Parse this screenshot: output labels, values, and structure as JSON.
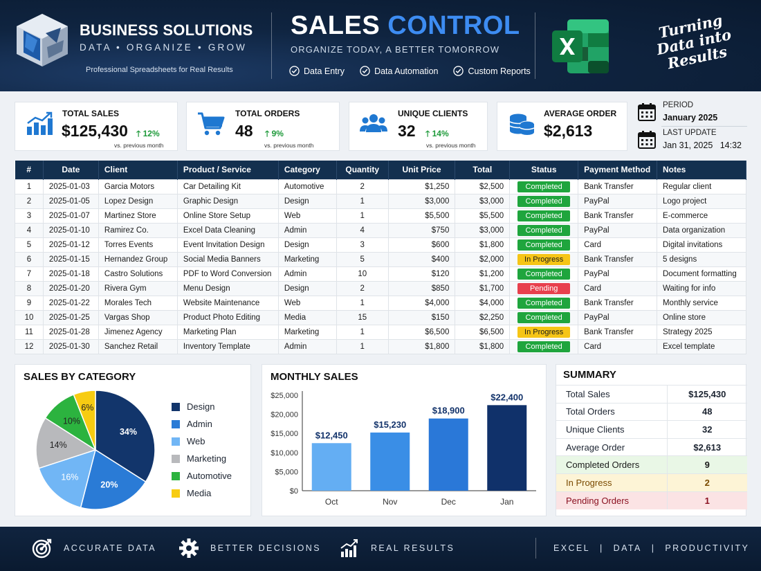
{
  "header": {
    "brand_title": "BUSINESS SOLUTIONS",
    "brand_tagline": "DATA • ORGANIZE • GROW",
    "brand_sub": "Professional Spreadsheets for Real Results",
    "title_part1": "SALES",
    "title_part2": "CONTROL",
    "subtitle": "ORGANIZE TODAY, A BETTER TOMORROW",
    "features": [
      "Data Entry",
      "Data Automation",
      "Custom Reports"
    ],
    "slogan": [
      "Turning",
      "Data into",
      "Results"
    ]
  },
  "kpis": [
    {
      "label": "TOTAL SALES",
      "value": "$125,430",
      "delta": "12%",
      "note": "vs. previous month",
      "icon": "bar-chart-icon"
    },
    {
      "label": "TOTAL ORDERS",
      "value": "48",
      "delta": "9%",
      "note": "vs. previous month",
      "icon": "shopping-cart-icon"
    },
    {
      "label": "UNIQUE CLIENTS",
      "value": "32",
      "delta": "14%",
      "note": "vs. previous month",
      "icon": "users-icon"
    },
    {
      "label": "AVERAGE ORDER",
      "value": "$2,613",
      "icon": "coins-icon"
    }
  ],
  "period": {
    "period_label": "PERIOD",
    "period_value": "January 2025",
    "update_label": "LAST UPDATE",
    "update_value": "Jan 31, 2025   14:32"
  },
  "table": {
    "headers": [
      "#",
      "Date",
      "Client",
      "Product / Service",
      "Category",
      "Quantity",
      "Unit Price",
      "Total",
      "Status",
      "Payment Method",
      "Notes"
    ],
    "rows": [
      [
        "1",
        "2025-01-03",
        "Garcia Motors",
        "Car Detailing Kit",
        "Automotive",
        "2",
        "$1,250",
        "$2,500",
        "Completed",
        "Bank Transfer",
        "Regular client"
      ],
      [
        "2",
        "2025-01-05",
        "Lopez Design",
        "Graphic Design",
        "Design",
        "1",
        "$3,000",
        "$3,000",
        "Completed",
        "PayPal",
        "Logo project"
      ],
      [
        "3",
        "2025-01-07",
        "Martinez Store",
        "Online Store Setup",
        "Web",
        "1",
        "$5,500",
        "$5,500",
        "Completed",
        "Bank Transfer",
        "E-commerce"
      ],
      [
        "4",
        "2025-01-10",
        "Ramirez Co.",
        "Excel Data Cleaning",
        "Admin",
        "4",
        "$750",
        "$3,000",
        "Completed",
        "PayPal",
        "Data organization"
      ],
      [
        "5",
        "2025-01-12",
        "Torres Events",
        "Event Invitation Design",
        "Design",
        "3",
        "$600",
        "$1,800",
        "Completed",
        "Card",
        "Digital invitations"
      ],
      [
        "6",
        "2025-01-15",
        "Hernandez Group",
        "Social Media Banners",
        "Marketing",
        "5",
        "$400",
        "$2,000",
        "In Progress",
        "Bank Transfer",
        "5 designs"
      ],
      [
        "7",
        "2025-01-18",
        "Castro Solutions",
        "PDF to Word Conversion",
        "Admin",
        "10",
        "$120",
        "$1,200",
        "Completed",
        "PayPal",
        "Document formatting"
      ],
      [
        "8",
        "2025-01-20",
        "Rivera Gym",
        "Menu Design",
        "Design",
        "2",
        "$850",
        "$1,700",
        "Pending",
        "Card",
        "Waiting for info"
      ],
      [
        "9",
        "2025-01-22",
        "Morales Tech",
        "Website Maintenance",
        "Web",
        "1",
        "$4,000",
        "$4,000",
        "Completed",
        "Bank Transfer",
        "Monthly service"
      ],
      [
        "10",
        "2025-01-25",
        "Vargas Shop",
        "Product Photo Editing",
        "Media",
        "15",
        "$150",
        "$2,250",
        "Completed",
        "PayPal",
        "Online store"
      ],
      [
        "11",
        "2025-01-28",
        "Jimenez Agency",
        "Marketing Plan",
        "Marketing",
        "1",
        "$6,500",
        "$6,500",
        "In Progress",
        "Bank Transfer",
        "Strategy 2025"
      ],
      [
        "12",
        "2025-01-30",
        "Sanchez Retail",
        "Inventory Template",
        "Admin",
        "1",
        "$1,800",
        "$1,800",
        "Completed",
        "Card",
        "Excel template"
      ]
    ]
  },
  "chart_data": [
    {
      "type": "pie",
      "title": "SALES BY CATEGORY",
      "categories": [
        "Design",
        "Admin",
        "Web",
        "Marketing",
        "Automotive",
        "Media"
      ],
      "values": [
        34,
        20,
        16,
        14,
        10,
        6
      ],
      "labels": [
        "34%",
        "20%",
        "16%",
        "14%",
        "10%",
        "6%"
      ],
      "colors": [
        "#12356b",
        "#2a7bd6",
        "#71b6f5",
        "#b8b9bc",
        "#2cb33f",
        "#f7cc12"
      ],
      "legend": "right"
    },
    {
      "type": "bar",
      "title": "MONTHLY SALES",
      "categories": [
        "Oct",
        "Nov",
        "Dec",
        "Jan"
      ],
      "values": [
        12450,
        15230,
        18900,
        22400
      ],
      "data_labels": [
        "$12,450",
        "$15,230",
        "$18,900",
        "$22,400"
      ],
      "colors": [
        "#64aef3",
        "#3a8ee6",
        "#2a78d8",
        "#10316a"
      ],
      "ylim": [
        0,
        25000
      ],
      "yticks": [
        "$0",
        "$5,000",
        "$10,000",
        "$15,000",
        "$20,000",
        "$25,000"
      ],
      "grid": false
    }
  ],
  "summary": {
    "title": "SUMMARY",
    "rows": [
      {
        "label": "Total Sales",
        "value": "$125,430"
      },
      {
        "label": "Total Orders",
        "value": "48"
      },
      {
        "label": "Unique Clients",
        "value": "32"
      },
      {
        "label": "Average Order",
        "value": "$2,613"
      },
      {
        "label": "Completed Orders",
        "value": "9",
        "bg": "#e9f7e6",
        "color": "#1a1a1a"
      },
      {
        "label": "In Progress",
        "value": "2",
        "bg": "#fdf4d6",
        "color": "#7a4a00"
      },
      {
        "label": "Pending Orders",
        "value": "1",
        "bg": "#fbe3e4",
        "color": "#8a1020"
      }
    ]
  },
  "footer": {
    "items": [
      "ACCURATE DATA",
      "BETTER DECISIONS",
      "REAL RESULTS"
    ],
    "right": [
      "EXCEL",
      "DATA",
      "PRODUCTIVITY"
    ]
  },
  "colors": {
    "accent": "#3d8cf2",
    "header_bg": "#0f2440",
    "table_header": "#13304f",
    "up": "#1e9a3a"
  }
}
